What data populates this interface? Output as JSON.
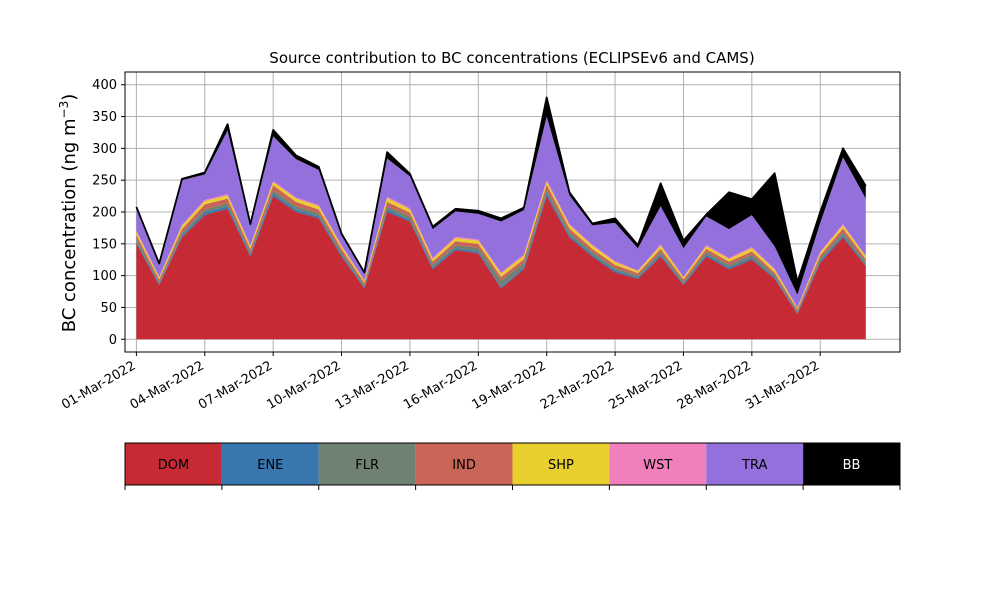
{
  "chart_data": {
    "type": "area",
    "stacked": true,
    "title": "Source contribution to BC concentrations (ECLIPSEv6 and CAMS)",
    "ylabel": "BC concentration (ng m$^{-3}$)",
    "ylabel_display": {
      "prefix": "BC concentration (ng m",
      "superscript": "−3",
      "suffix": ")"
    },
    "xlabel": "",
    "x_start": "2022-03-01",
    "x_end": "2022-04-02",
    "xlim": [
      "2022-02-28T12:00",
      "2022-04-03T12:00"
    ],
    "ylim": [
      -20,
      420
    ],
    "yticks": [
      0,
      50,
      100,
      150,
      200,
      250,
      300,
      350,
      400
    ],
    "xticks": [
      {
        "date": "2022-03-01",
        "label": "01-Mar-2022"
      },
      {
        "date": "2022-03-04",
        "label": "04-Mar-2022"
      },
      {
        "date": "2022-03-07",
        "label": "07-Mar-2022"
      },
      {
        "date": "2022-03-10",
        "label": "10-Mar-2022"
      },
      {
        "date": "2022-03-13",
        "label": "13-Mar-2022"
      },
      {
        "date": "2022-03-16",
        "label": "16-Mar-2022"
      },
      {
        "date": "2022-03-19",
        "label": "19-Mar-2022"
      },
      {
        "date": "2022-03-22",
        "label": "22-Mar-2022"
      },
      {
        "date": "2022-03-25",
        "label": "25-Mar-2022"
      },
      {
        "date": "2022-03-28",
        "label": "28-Mar-2022"
      },
      {
        "date": "2022-03-31",
        "label": "31-Mar-2022"
      }
    ],
    "grid": true,
    "legend_placement": "bottom colorbar",
    "dates": [
      "2022-03-01",
      "2022-03-02",
      "2022-03-03",
      "2022-03-04",
      "2022-03-05",
      "2022-03-06",
      "2022-03-07",
      "2022-03-08",
      "2022-03-09",
      "2022-03-10",
      "2022-03-11",
      "2022-03-12",
      "2022-03-13",
      "2022-03-14",
      "2022-03-15",
      "2022-03-16",
      "2022-03-17",
      "2022-03-18",
      "2022-03-19",
      "2022-03-20",
      "2022-03-21",
      "2022-03-22",
      "2022-03-23",
      "2022-03-24",
      "2022-03-25",
      "2022-03-26",
      "2022-03-27",
      "2022-03-28",
      "2022-03-29",
      "2022-03-30",
      "2022-03-31",
      "2022-04-01",
      "2022-04-02"
    ],
    "series": [
      {
        "name": "DOM",
        "color": "#c62a35",
        "values": [
          150,
          85,
          160,
          195,
          205,
          130,
          225,
          200,
          190,
          130,
          80,
          200,
          185,
          110,
          140,
          135,
          80,
          110,
          225,
          160,
          130,
          105,
          95,
          130,
          85,
          130,
          110,
          125,
          95,
          40,
          120,
          160,
          115
        ]
      },
      {
        "name": "ENE",
        "color": "#3776ae",
        "values": [
          3,
          2,
          3,
          4,
          4,
          3,
          4,
          4,
          3,
          3,
          2,
          4,
          3,
          3,
          3,
          3,
          2,
          3,
          4,
          3,
          3,
          3,
          2,
          3,
          2,
          3,
          3,
          3,
          2,
          1,
          3,
          3,
          2
        ]
      },
      {
        "name": "FLR",
        "color": "#6f8272",
        "values": [
          5,
          3,
          4,
          5,
          5,
          4,
          5,
          5,
          5,
          4,
          3,
          5,
          5,
          4,
          5,
          6,
          10,
          7,
          6,
          5,
          4,
          4,
          3,
          4,
          3,
          4,
          4,
          5,
          4,
          3,
          4,
          5,
          4
        ]
      },
      {
        "name": "IND",
        "color": "#c96556",
        "values": [
          6,
          4,
          6,
          8,
          7,
          5,
          8,
          7,
          6,
          5,
          4,
          7,
          6,
          5,
          6,
          6,
          6,
          6,
          8,
          6,
          5,
          5,
          4,
          5,
          4,
          5,
          5,
          5,
          4,
          3,
          5,
          6,
          5
        ]
      },
      {
        "name": "SHP",
        "color": "#e8cf2d",
        "values": [
          5,
          3,
          5,
          5,
          5,
          4,
          5,
          5,
          5,
          4,
          3,
          6,
          5,
          4,
          5,
          5,
          5,
          5,
          5,
          5,
          5,
          4,
          3,
          5,
          3,
          4,
          4,
          5,
          4,
          2,
          4,
          5,
          4
        ]
      },
      {
        "name": "WST",
        "color": "#f07fbb",
        "values": [
          2,
          1,
          2,
          2,
          2,
          2,
          2,
          2,
          2,
          2,
          1,
          2,
          2,
          2,
          2,
          2,
          2,
          2,
          2,
          2,
          2,
          2,
          1,
          2,
          1,
          2,
          2,
          2,
          2,
          1,
          2,
          2,
          1
        ]
      },
      {
        "name": "TRA",
        "color": "#9370db",
        "values": [
          35,
          20,
          70,
          40,
          100,
          30,
          70,
          60,
          55,
          15,
          10,
          60,
          50,
          45,
          40,
          40,
          80,
          70,
          100,
          45,
          30,
          60,
          35,
          60,
          45,
          45,
          45,
          50,
          35,
          20,
          45,
          105,
          90
        ]
      },
      {
        "name": "BB",
        "color": "#000000",
        "values": [
          2,
          1,
          2,
          3,
          10,
          3,
          10,
          6,
          5,
          3,
          2,
          10,
          4,
          4,
          4,
          5,
          5,
          4,
          30,
          5,
          3,
          7,
          5,
          36,
          12,
          3,
          58,
          25,
          115,
          20,
          17,
          14,
          20
        ]
      }
    ]
  },
  "legend": {
    "items": [
      {
        "label": "DOM",
        "color": "#c62a35",
        "text_color": "#000000"
      },
      {
        "label": "ENE",
        "color": "#3776ae",
        "text_color": "#000000"
      },
      {
        "label": "FLR",
        "color": "#6f8272",
        "text_color": "#000000"
      },
      {
        "label": "IND",
        "color": "#c96556",
        "text_color": "#000000"
      },
      {
        "label": "SHP",
        "color": "#e8cf2d",
        "text_color": "#000000"
      },
      {
        "label": "WST",
        "color": "#f07fbb",
        "text_color": "#000000"
      },
      {
        "label": "TRA",
        "color": "#9370db",
        "text_color": "#000000"
      },
      {
        "label": "BB",
        "color": "#000000",
        "text_color": "#ffffff"
      }
    ]
  }
}
